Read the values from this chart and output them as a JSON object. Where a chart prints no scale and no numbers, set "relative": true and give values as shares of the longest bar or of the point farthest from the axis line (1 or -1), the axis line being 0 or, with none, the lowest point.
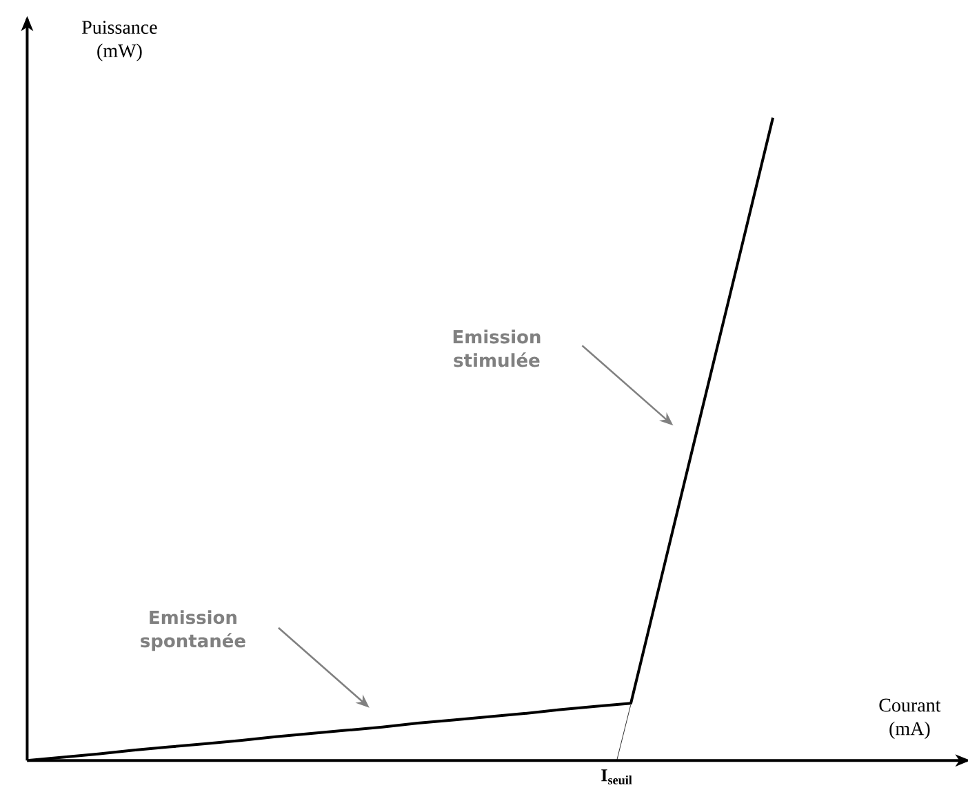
{
  "chart_data": {
    "type": "line",
    "relative": true,
    "xlabel": "Courant (mA)",
    "ylabel": "Puissance (mW)",
    "categories": [
      null,
      null,
      null,
      null,
      null,
      null,
      null,
      null,
      null,
      null,
      null,
      null,
      null,
      null,
      null,
      null,
      null,
      null,
      null,
      null,
      null,
      null
    ],
    "series": [
      {
        "color": "#000000",
        "values": [
          0,
          0.005,
          0.01,
          0.016,
          0.021,
          0.026,
          0.031,
          0.037,
          0.042,
          0.047,
          0.052,
          0.058,
          0.063,
          0.068,
          0.073,
          0.079,
          0.084,
          0.089,
          0.317,
          0.545,
          0.772,
          1
        ]
      }
    ],
    "annotations": [
      "Emission stimulée",
      "Emission spontanée",
      "I$_{seuil}$"
    ]
  }
}
